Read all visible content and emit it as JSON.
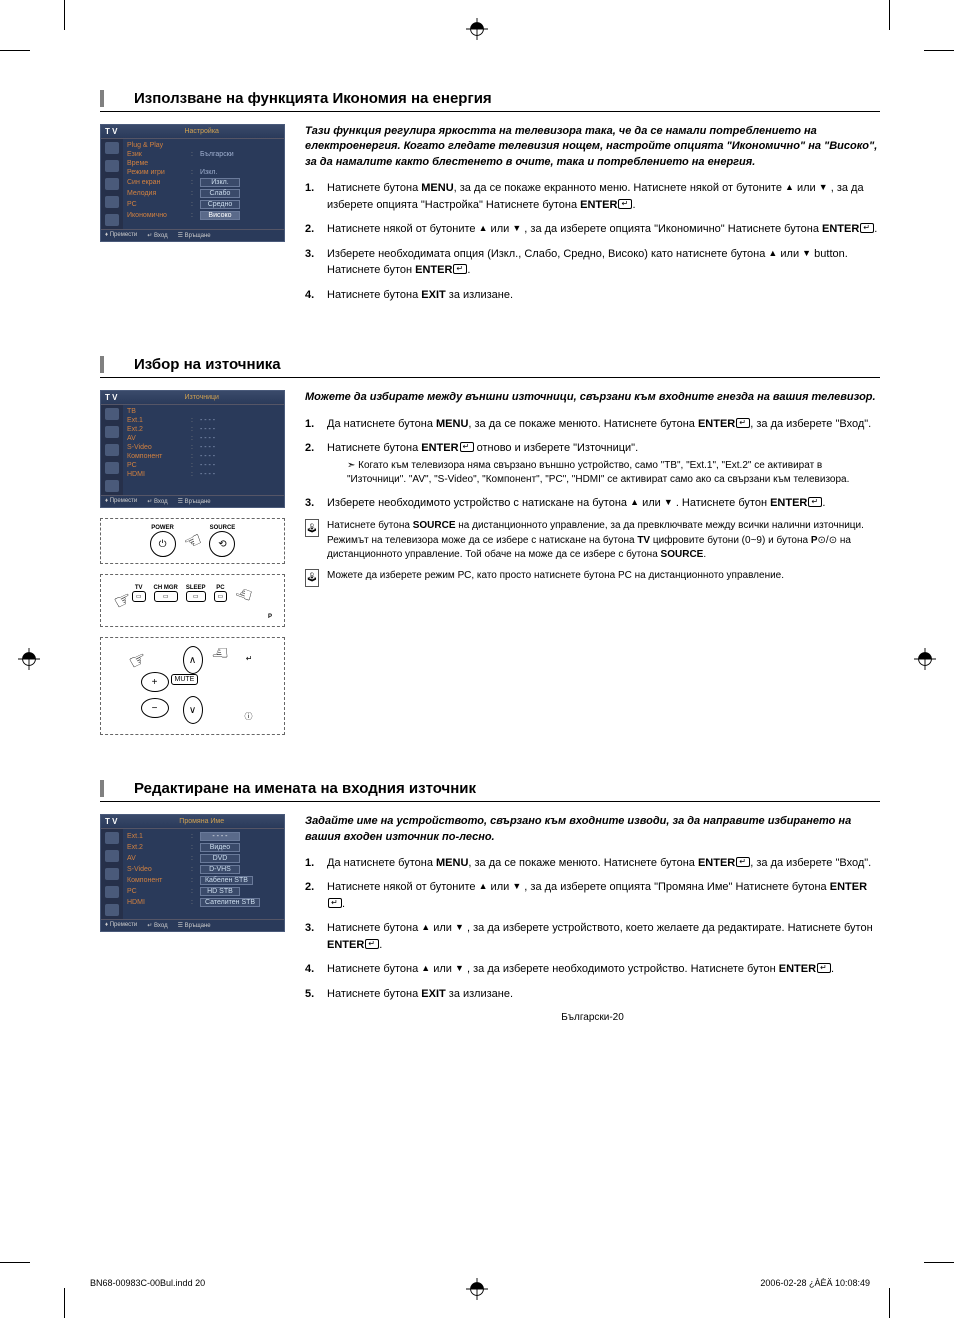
{
  "section1": {
    "title": "Използване на функцията Икономия на енергия",
    "intro": "Тази функция регулира яркостта на телевизора така, че да се намали потреблението на електроенергия. Когато гледате телевизия нощем, настройте опцията \"Икономично\" на \"Високо\", за да намалите както блестенето в очите, така и потреблението на енергия.",
    "steps": {
      "s1a": "Натиснете бутона ",
      "s1b": "MENU",
      "s1c": ", за да се покаже екранното меню. Натиснете някой от бутоните ",
      "s1d": " или ",
      "s1e": " , за да изберете опцията \"Настройка\" Натиснете бутона ",
      "s1f": "ENTER",
      "s2a": "Натиснете някой от бутоните ",
      "s2b": " или ",
      "s2c": " , за да изберете опцията \"Икономично\" Натиснете бутона ",
      "s2d": "ENTER",
      "s3a": "Изберете необходимата опция (Изкл., Слабо, Средно, Високо) като натиснете бутона ",
      "s3b": " или ",
      "s3c": " button. Натиснете бутон ",
      "s3d": "ENTER",
      "s4a": "Натиснете бутона ",
      "s4b": "EXIT",
      "s4c": " за излизане."
    },
    "menu": {
      "title": "Настройка",
      "rows": [
        {
          "lbl": "Plug & Play",
          "val": ""
        },
        {
          "lbl": "Език",
          "val": "Български"
        },
        {
          "lbl": "Време",
          "val": ""
        },
        {
          "lbl": "Режим игри",
          "val": "Изкл."
        },
        {
          "lbl": "Син екран",
          "val": "Изкл.",
          "box": true
        },
        {
          "lbl": "Мелодия",
          "val": "Слабо",
          "box": true
        },
        {
          "lbl": "PC",
          "val": "Средно",
          "box": true
        },
        {
          "lbl": "Икономично",
          "val": "Високо",
          "box": true,
          "hl": true
        }
      ]
    }
  },
  "section2": {
    "title": "Избор на източника",
    "intro": "Можете да избирате между външни източници, свързани към входните гнезда на вашия телевизор.",
    "steps": {
      "s1a": "Да натиснете бутона ",
      "s1b": "MENU",
      "s1c": ", за да се покаже менюто. Натиснете бутона ",
      "s1d": "ENTER",
      "s1e": ", за да изберете \"Вход\".",
      "s2a": "Натиснете бутона ",
      "s2b": "ENTER",
      "s2c": " отново и изберете \"Източници\".",
      "s2sub": "Когато към телевизора няма свързано външно устройство, само \"ТВ\", \"Ext.1\", \"Ext.2\" се активират в \"Източници\". \"AV\", \"S-Video\", \"Компонент\", \"PC\", \"HDMI\" се активират само ако са свързани към телевизора.",
      "s3a": "Изберете необходимото устройство с натискане на бутона ",
      "s3b": " или ",
      "s3c": " . Натиснете бутон ",
      "s3d": "ENTER"
    },
    "note1a": "Натиснете бутона ",
    "note1b": "SOURCE",
    "note1c": " на дистанционното управление, за да превключвате между всички налични източници. Режимът на телевизора може да се избере с натискане на бутона ",
    "note1d": "TV",
    "note1e": " цифровите бутони (0~9) и бутона ",
    "note1f": "P",
    "note1g": " на дистанционното управление. Той обаче на може да се избере с бутона ",
    "note1h": "SOURCE",
    "note2": "Можете да изберете режим РС, като просто натиснете бутона PC на дистанционното управление.",
    "menu": {
      "title": "Източници",
      "rows": [
        {
          "lbl": "ТВ",
          "val": "",
          "hl": true
        },
        {
          "lbl": "Ext.1",
          "val": "- - - -"
        },
        {
          "lbl": "Ext.2",
          "val": "- - - -"
        },
        {
          "lbl": "AV",
          "val": "- - - -"
        },
        {
          "lbl": "S-Video",
          "val": "- - - -"
        },
        {
          "lbl": "Компонент",
          "val": "- - - -"
        },
        {
          "lbl": "PC",
          "val": "- - - -"
        },
        {
          "lbl": "HDMI",
          "val": "- - - -"
        }
      ]
    },
    "remote1": {
      "power": "POWER",
      "source": "SOURCE"
    },
    "remote2": {
      "tv": "TV",
      "ch": "CH MGR",
      "sleep": "SLEEP",
      "pc": "PC",
      "p": "P"
    },
    "remote3": {
      "mute": "MUTE",
      "plus": "+",
      "minus": "−"
    }
  },
  "section3": {
    "title": "Редактиране на имената на входния източник",
    "intro": "Задайте име на устройството, свързано към входните изводи, за да направите избирането на вашия входен източник по-лесно.",
    "steps": {
      "s1a": "Да натиснете бутона ",
      "s1b": "MENU",
      "s1c": ", за да се покаже менюто. Натиснете бутона ",
      "s1d": "ENTER",
      "s1e": ", за да изберете \"Вход\".",
      "s2a": "Натиснете някой от бутоните ",
      "s2b": " или ",
      "s2c": " , за да изберете опцията \"Промяна Име\" Натиснете бутона ",
      "s2d": "ENTER",
      "s3a": "Натиснете бутона ",
      "s3b": " или ",
      "s3c": " , за да изберете устройството, което желаете да редактирате. Натиснете бутон ",
      "s3d": "ENTER",
      "s4a": "Натиснете бутона ",
      "s4b": " или ",
      "s4c": " , за да изберете необходимото устройство. Натиснете бутон ",
      "s4d": "ENTER",
      "s5a": "Натиснете бутона ",
      "s5b": "EXIT",
      "s5c": " за излизане."
    },
    "menu": {
      "title": "Промяна Име",
      "rows": [
        {
          "lbl": "Ext.1",
          "val": "- - - -",
          "box": true,
          "hl": true
        },
        {
          "lbl": "Ext.2",
          "val": "Видео",
          "box": true
        },
        {
          "lbl": "AV",
          "val": "DVD",
          "box": true
        },
        {
          "lbl": "S-Video",
          "val": "D-VHS",
          "box": true
        },
        {
          "lbl": "Компонент",
          "val": "Кабелен STB",
          "box": true
        },
        {
          "lbl": "PC",
          "val": "HD STB",
          "box": true
        },
        {
          "lbl": "HDMI",
          "val": "Сателитен STB",
          "box": true
        }
      ]
    }
  },
  "tvLabel": "T V",
  "footLabels": {
    "move": "Премести",
    "enter": "Вход",
    "return": "Връщане"
  },
  "pageNum": "Български-20",
  "footer": {
    "left": "BN68-00983C-00Bul.indd   20",
    "right": "2006-02-28   ¿ÀÈÄ 10:08:49"
  }
}
